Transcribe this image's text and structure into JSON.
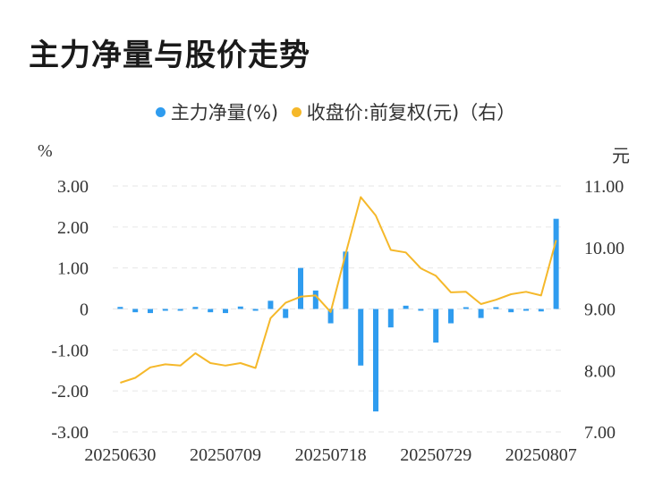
{
  "title": "主力净量与股价走势",
  "legend": {
    "bar_label": "主力净量(%)",
    "line_label": "收盘价:前复权(元)（右）"
  },
  "units": {
    "left": "%",
    "right": "元"
  },
  "colors": {
    "bar": "#2f9cef",
    "line": "#f5b82a",
    "grid": "#e6e6e6"
  },
  "chart_data": {
    "type": "bar+line",
    "x_tick_labels": [
      "20250630",
      "20250709",
      "20250718",
      "20250729",
      "20250807"
    ],
    "x_tick_index": [
      0,
      7,
      14,
      21,
      28
    ],
    "left_axis": {
      "unit": "%",
      "range": [
        -3,
        3
      ],
      "ticks": [
        -3,
        -2,
        -1,
        0,
        1,
        2,
        3
      ],
      "tick_labels": [
        "-3.00",
        "-2.00",
        "-1.00",
        "0",
        "1.00",
        "2.00",
        "3.00"
      ]
    },
    "right_axis": {
      "unit": "元",
      "range": [
        7,
        11
      ],
      "ticks": [
        7,
        8,
        9,
        10,
        11
      ],
      "tick_labels": [
        "7.00",
        "8.00",
        "9.00",
        "10.00",
        "11.00"
      ]
    },
    "grid": "horizontal dashed",
    "legend_position": "top",
    "series": [
      {
        "name": "主力净量(%)",
        "type": "bar",
        "axis": "left",
        "values": [
          0.05,
          -0.08,
          -0.1,
          -0.02,
          -0.02,
          0.05,
          -0.08,
          -0.1,
          0.06,
          -0.04,
          0.2,
          -0.22,
          1.0,
          0.45,
          -0.35,
          1.4,
          -1.38,
          -2.5,
          -0.45,
          0.08,
          -0.04,
          -0.82,
          -0.35,
          0.03,
          -0.22,
          0.04,
          -0.08,
          -0.02,
          -0.06,
          2.2
        ]
      },
      {
        "name": "收盘价:前复权(元)（右）",
        "type": "line",
        "axis": "right",
        "values": [
          7.8,
          7.88,
          8.05,
          8.1,
          8.08,
          8.28,
          8.12,
          8.08,
          8.12,
          8.04,
          8.85,
          9.1,
          9.2,
          9.22,
          8.95,
          9.9,
          10.82,
          10.52,
          9.96,
          9.92,
          9.66,
          9.54,
          9.27,
          9.28,
          9.08,
          9.15,
          9.24,
          9.28,
          9.22,
          10.12
        ]
      }
    ]
  }
}
